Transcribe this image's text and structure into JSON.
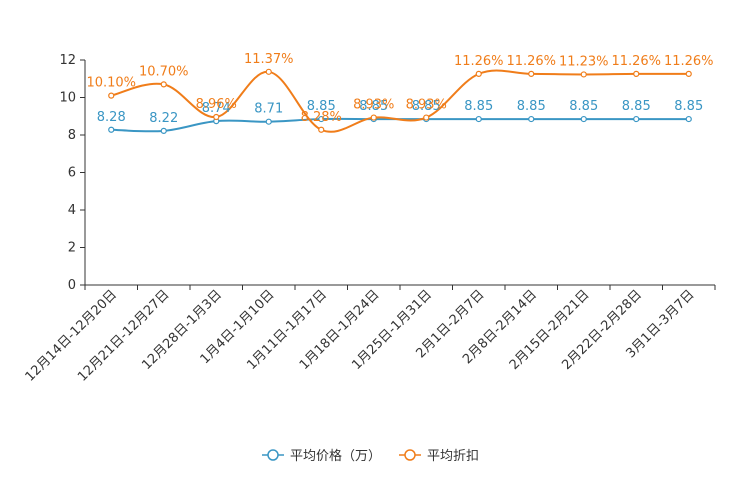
{
  "chart_data": {
    "type": "line",
    "title": "",
    "xlabel": "",
    "ylabel": "",
    "ylim": [
      0,
      12
    ],
    "yticks": [
      "0",
      "2",
      "4",
      "6",
      "8",
      "10",
      "12"
    ],
    "categories": [
      "12月14日-12月20日",
      "12月21日-12月27日",
      "12月28日-1月3日",
      "1月4日-1月10日",
      "1月11日-1月17日",
      "1月18日-1月24日",
      "1月25日-1月31日",
      "2月1日-2月7日",
      "2月8日-2月14日",
      "2月15日-2月21日",
      "2月22日-2月28日",
      "3月1日-3月7日"
    ],
    "series": [
      {
        "name": "平均价格（万）",
        "color": "#3a96c4",
        "values": [
          8.28,
          8.22,
          8.74,
          8.71,
          8.85,
          8.85,
          8.85,
          8.85,
          8.85,
          8.85,
          8.85,
          8.85
        ],
        "labels": [
          "8.28",
          "8.22",
          "8.74",
          "8.71",
          "8.85",
          "8.85",
          "8.85",
          "8.85",
          "8.85",
          "8.85",
          "8.85",
          "8.85"
        ]
      },
      {
        "name": "平均折扣",
        "color": "#f07d1a",
        "values": [
          10.1,
          10.7,
          8.96,
          11.37,
          8.28,
          8.93,
          8.93,
          11.26,
          11.26,
          11.23,
          11.26,
          11.26
        ],
        "labels": [
          "10.10%",
          "10.70%",
          "8.96%",
          "11.37%",
          "8.28%",
          "8.93%",
          "8.93%",
          "11.26%",
          "11.26%",
          "11.23%",
          "11.26%",
          "11.26%"
        ]
      }
    ],
    "legend": "bottom-center"
  }
}
